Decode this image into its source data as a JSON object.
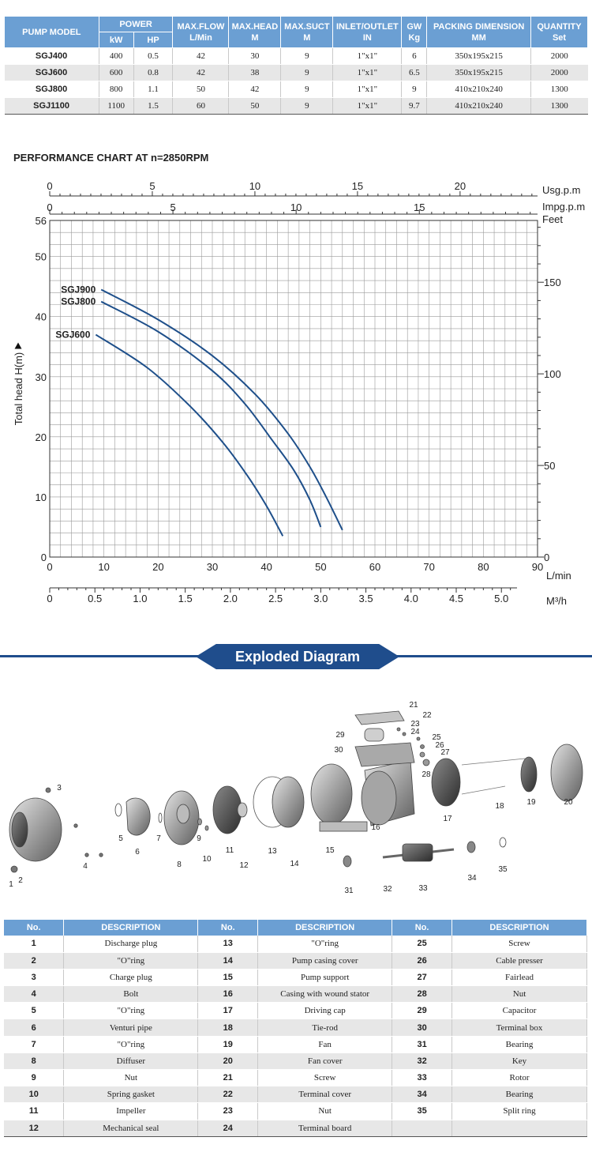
{
  "spec_table": {
    "headers": {
      "pump_model": "PUMP MODEL",
      "power": "POWER",
      "kw": "kW",
      "hp": "HP",
      "max_flow": "MAX.FLOW",
      "max_flow_unit": "L/Min",
      "max_head": "MAX.HEAD",
      "max_head_unit": "M",
      "max_suct": "MAX.SUCT",
      "max_suct_unit": "M",
      "inlet_outlet": "INLET/OUTLET",
      "inlet_outlet_unit": "IN",
      "gw": "GW",
      "gw_unit": "Kg",
      "packing": "PACKING DIMENSION",
      "packing_unit": "MM",
      "quantity": "QUANTITY",
      "quantity_unit": "Set"
    },
    "rows": [
      [
        "SGJ400",
        "400",
        "0.5",
        "42",
        "30",
        "9",
        "1\"x1\"",
        "6",
        "350x195x215",
        "2000"
      ],
      [
        "SGJ600",
        "600",
        "0.8",
        "42",
        "38",
        "9",
        "1\"x1\"",
        "6.5",
        "350x195x215",
        "2000"
      ],
      [
        "SGJ800",
        "800",
        "1.1",
        "50",
        "42",
        "9",
        "1\"x1\"",
        "9",
        "410x210x240",
        "1300"
      ],
      [
        "SGJ1100",
        "1100",
        "1.5",
        "60",
        "50",
        "9",
        "1\"x1\"",
        "9.7",
        "410x210x240",
        "1300"
      ]
    ]
  },
  "chart_title": "PERFORMANCE CHART AT n=2850RPM",
  "chart_data": {
    "type": "line",
    "title": "PERFORMANCE CHART AT n=2850RPM",
    "xlabel": "L/min",
    "ylabel": "Total head H(m)",
    "xlim": [
      0,
      90
    ],
    "ylim": [
      0,
      56
    ],
    "x_ticks": [
      "0",
      "10",
      "20",
      "30",
      "40",
      "50",
      "60",
      "70",
      "80",
      "90"
    ],
    "y_ticks": [
      "0",
      "10",
      "20",
      "30",
      "40",
      "50",
      "56"
    ],
    "grid": true,
    "secondary_axes": {
      "usgpm_label": "Usg.p.m",
      "usgpm_ticks": [
        "0",
        "5",
        "10",
        "15",
        "20"
      ],
      "impgpm_label": "Impg.p.m",
      "impgpm_ticks": [
        "0",
        "5",
        "10",
        "15"
      ],
      "feet_label": "Feet",
      "feet_ticks": [
        "0",
        "50",
        "100",
        "150"
      ],
      "m3h_label": "M³/h",
      "m3h_ticks": [
        "0",
        "0.5",
        "1.0",
        "1.5",
        "2.0",
        "2.5",
        "3.0",
        "3.5",
        "4.0",
        "4.5",
        "5.0"
      ]
    },
    "series": [
      {
        "name": "SGJ900",
        "x": [
          9.5,
          20,
          30,
          38,
          44,
          48,
          51,
          54
        ],
        "y": [
          44.5,
          39.5,
          33.5,
          27,
          20.5,
          15,
          10,
          4.5
        ]
      },
      {
        "name": "SGJ800",
        "x": [
          9.5,
          20,
          30,
          36,
          41,
          45,
          48,
          50
        ],
        "y": [
          42.5,
          37.5,
          31,
          25.5,
          19.5,
          14.5,
          9.5,
          5
        ]
      },
      {
        "name": "SGJ600",
        "x": [
          8.5,
          18,
          26,
          32,
          36.5,
          40,
          43
        ],
        "y": [
          37,
          31.5,
          25,
          19,
          13.5,
          8.5,
          3.5
        ]
      }
    ]
  },
  "exploded": {
    "title": "Exploded Diagram",
    "callouts": [
      "1",
      "2",
      "3",
      "4",
      "5",
      "6",
      "7",
      "8",
      "9",
      "10",
      "11",
      "12",
      "13",
      "14",
      "15",
      "16",
      "17",
      "18",
      "19",
      "20",
      "21",
      "22",
      "23",
      "24",
      "25",
      "26",
      "27",
      "28",
      "29",
      "30",
      "31",
      "32",
      "33",
      "34",
      "35"
    ]
  },
  "parts_table": {
    "headers": [
      "No.",
      "DESCRIPTION",
      "No.",
      "DESCRIPTION",
      "No.",
      "DESCRIPTION"
    ],
    "rows": [
      [
        "1",
        "Discharge plug",
        "13",
        "\"O\"ring",
        "25",
        "Screw"
      ],
      [
        "2",
        "\"O\"ring",
        "14",
        "Pump casing cover",
        "26",
        "Cable presser"
      ],
      [
        "3",
        "Charge plug",
        "15",
        "Pump support",
        "27",
        "Fairlead"
      ],
      [
        "4",
        "Bolt",
        "16",
        "Casing with wound stator",
        "28",
        "Nut"
      ],
      [
        "5",
        "\"O\"ring",
        "17",
        "Driving cap",
        "29",
        "Capacitor"
      ],
      [
        "6",
        "Venturi pipe",
        "18",
        "Tie-rod",
        "30",
        "Terminal box"
      ],
      [
        "7",
        "\"O\"ring",
        "19",
        "Fan",
        "31",
        "Bearing"
      ],
      [
        "8",
        "Diffuser",
        "20",
        "Fan cover",
        "32",
        "Key"
      ],
      [
        "9",
        "Nut",
        "21",
        "Screw",
        "33",
        "Rotor"
      ],
      [
        "10",
        "Spring gasket",
        "22",
        "Terminal cover",
        "34",
        "Bearing"
      ],
      [
        "11",
        "Impeller",
        "23",
        "Nut",
        "35",
        "Split ring"
      ],
      [
        "12",
        "Mechanical seal",
        "24",
        "Terminal board",
        "",
        ""
      ]
    ]
  },
  "colors": {
    "header_blue": "#6b9fd3",
    "banner_blue": "#1f4d8c",
    "curve_blue": "#1e4f8a"
  }
}
